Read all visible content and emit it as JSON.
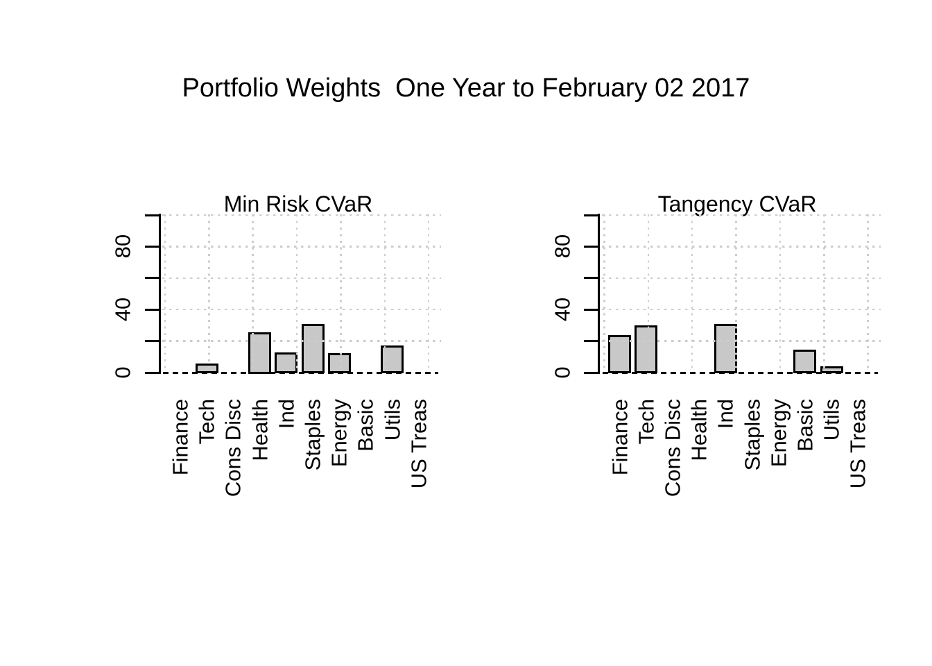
{
  "main_title": "Portfolio Weights  One Year to February 02 2017",
  "colors": {
    "background": "#ffffff",
    "bar_fill": "#c8c8c8",
    "bar_border": "#000000",
    "grid": "#cdcdcd",
    "axis": "#000000",
    "zero_line": "#000000",
    "text": "#000000"
  },
  "chart_data": [
    {
      "type": "bar",
      "title": "Min Risk CVaR",
      "categories": [
        "Finance",
        "Tech",
        "Cons Disc",
        "Health",
        "Ind",
        "Staples",
        "Energy",
        "Basic",
        "Utils",
        "US Treas"
      ],
      "values": [
        0,
        5,
        0,
        25,
        12,
        30,
        11.5,
        0,
        16.5,
        0
      ],
      "xlabel": "",
      "ylabel": "",
      "ylim": [
        0,
        100
      ],
      "ytick_values": [
        0,
        20,
        40,
        60,
        80,
        100
      ],
      "ytick_labels": [
        "0",
        "",
        "40",
        "",
        "80",
        ""
      ],
      "grid": "dotted lightgray at every tick, drawn over bars",
      "zero_baseline": "black dashed",
      "legend": "none"
    },
    {
      "type": "bar",
      "title": "Tangency CVaR",
      "categories": [
        "Finance",
        "Tech",
        "Cons Disc",
        "Health",
        "Ind",
        "Staples",
        "Energy",
        "Basic",
        "Utils",
        "US Treas"
      ],
      "values": [
        23,
        29.5,
        0,
        0,
        30,
        0,
        0,
        14,
        3.5,
        0
      ],
      "xlabel": "",
      "ylabel": "",
      "ylim": [
        0,
        100
      ],
      "ytick_values": [
        0,
        20,
        40,
        60,
        80,
        100
      ],
      "ytick_labels": [
        "0",
        "",
        "40",
        "",
        "80",
        ""
      ],
      "grid": "dotted lightgray at every tick, drawn over bars",
      "zero_baseline": "black dashed",
      "legend": "none"
    }
  ]
}
